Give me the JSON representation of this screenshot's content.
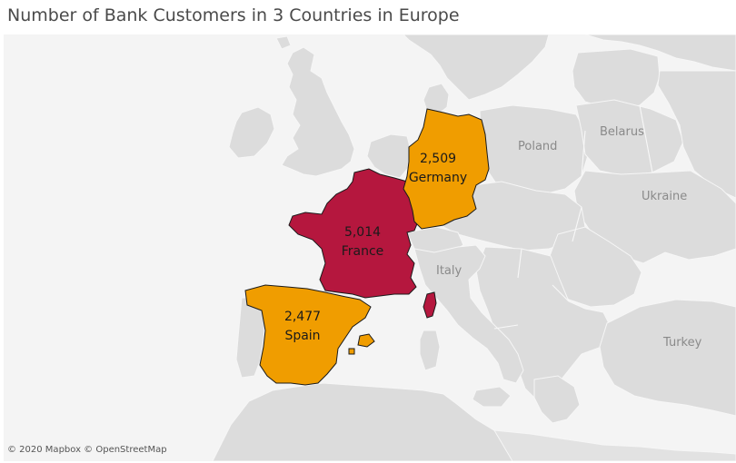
{
  "title": "Number of Bank Customers in 3 Countries in Europe",
  "attribution": "© 2020 Mapbox © OpenStreetMap",
  "colors": {
    "highlight_max": "#b5173e",
    "highlight_other": "#f09d00",
    "land": "#dcdcdc",
    "water": "#f4f4f4"
  },
  "background_labels": {
    "poland": "Poland",
    "belarus": "Belarus",
    "ukraine": "Ukraine",
    "italy": "Italy",
    "turkey": "Turkey"
  },
  "chart_data": {
    "type": "map",
    "measure": "Number of Bank Customers",
    "regions": [
      {
        "name": "France",
        "value": 5014,
        "value_label": "5,014",
        "color": "#b5173e"
      },
      {
        "name": "Germany",
        "value": 2509,
        "value_label": "2,509",
        "color": "#f09d00"
      },
      {
        "name": "Spain",
        "value": 2477,
        "value_label": "2,477",
        "color": "#f09d00"
      }
    ]
  }
}
